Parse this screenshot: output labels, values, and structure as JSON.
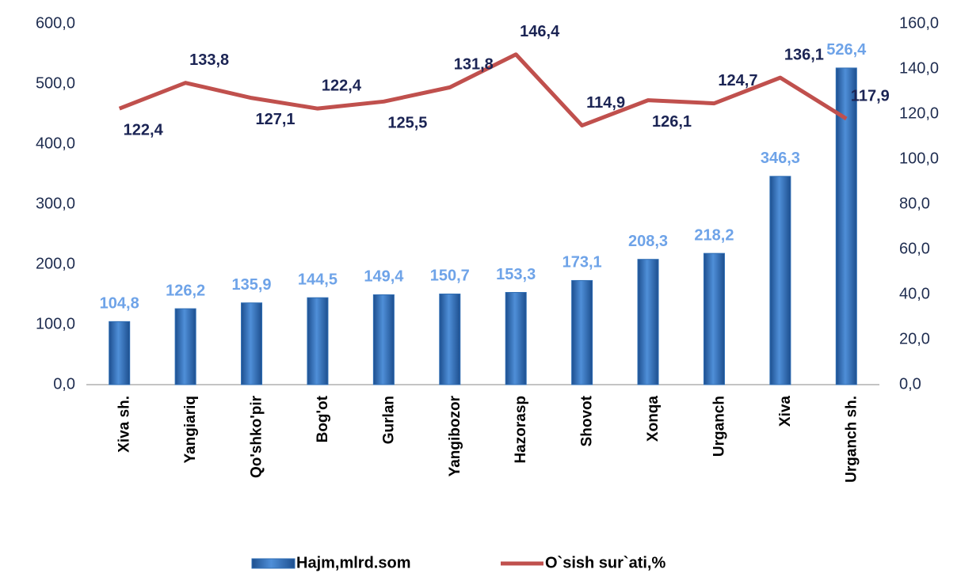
{
  "chart_data": {
    "type": "bar",
    "categories": [
      "Xiva sh.",
      "Yangiariq",
      "Qo'shko'pir",
      "Bog'ot",
      "Gurlan",
      "Yangibozor",
      "Hazorasp",
      "Shovot",
      "Xonqa",
      "Urganch",
      "Xiva",
      "Urganch sh."
    ],
    "series": [
      {
        "name": "Hajm,mlrd.som",
        "type": "bar",
        "color": "#2e6db4",
        "axis": "y",
        "values": [
          104.8,
          126.2,
          135.9,
          144.5,
          149.4,
          150.7,
          153.3,
          173.1,
          208.3,
          218.2,
          346.3,
          526.4
        ],
        "value_labels": [
          "104,8",
          "126,2",
          "135,9",
          "144,5",
          "149,4",
          "150,7",
          "153,3",
          "173,1",
          "208,3",
          "218,2",
          "346,3",
          "526,4"
        ]
      },
      {
        "name": "O`sish sur`ati,%",
        "type": "line",
        "color": "#c0504d",
        "axis": "y2",
        "values": [
          122.4,
          133.8,
          127.1,
          122.4,
          125.5,
          131.8,
          146.4,
          114.9,
          126.1,
          124.7,
          136.1,
          117.9
        ],
        "value_labels": [
          "122,4",
          "133,8",
          "127,1",
          "122,4",
          "125,5",
          "131,8",
          "146,4",
          "114,9",
          "126,1",
          "124,7",
          "136,1",
          "117,9"
        ]
      }
    ],
    "ylim": [
      0,
      600
    ],
    "yticks": [
      {
        "value": 0,
        "label": "0,0"
      },
      {
        "value": 100,
        "label": "100,0"
      },
      {
        "value": 200,
        "label": "200,0"
      },
      {
        "value": 300,
        "label": "300,0"
      },
      {
        "value": 400,
        "label": "400,0"
      },
      {
        "value": 500,
        "label": "500,0"
      },
      {
        "value": 600,
        "label": "600,0"
      }
    ],
    "y2lim": [
      0,
      160
    ],
    "y2ticks": [
      {
        "value": 0,
        "label": "0,0"
      },
      {
        "value": 20,
        "label": "20,0"
      },
      {
        "value": 40,
        "label": "40,0"
      },
      {
        "value": 60,
        "label": "60,0"
      },
      {
        "value": 80,
        "label": "80,0"
      },
      {
        "value": 100,
        "label": "100,0"
      },
      {
        "value": 120,
        "label": "120,0"
      },
      {
        "value": 140,
        "label": "140,0"
      },
      {
        "value": 160,
        "label": "160,0"
      }
    ],
    "legend": "bottom"
  }
}
